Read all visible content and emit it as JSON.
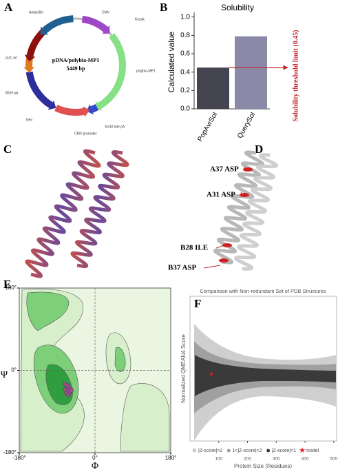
{
  "panel_letters": [
    "A",
    "B",
    "C",
    "D",
    "E",
    "F"
  ],
  "plasmid_map": {
    "name": "pDNA/polybia-MP1",
    "size": "5449 bp",
    "features": [
      "CMV",
      "Kozak",
      "polybia-MP1",
      "SV40 late pA",
      "CMV promoter",
      "Neo",
      "BGH pA",
      "pUC ori",
      "Ampicillin"
    ]
  },
  "structure_labels": [
    "A37 ASP",
    "A31 ASP",
    "B28 ILE",
    "B37 ASP"
  ],
  "chart_data": [
    {
      "type": "bar",
      "title": "Solubility",
      "y_label": "Calculated value",
      "categories": [
        "PopAvrSol",
        "QuerySol"
      ],
      "values": [
        0.45,
        0.79
      ],
      "colors": [
        "#454552",
        "#8a8aa8"
      ],
      "ylim": [
        0,
        1.05
      ],
      "yticks": [
        {
          "value": 0,
          "label": "0.0"
        },
        0.2,
        0.4,
        0.6,
        0.8,
        {
          "value": 1,
          "label": "1.0"
        }
      ],
      "threshold": 0.45,
      "annotation": "Solubility threshold limit (0.45)",
      "annotation_color": "#c0272d"
    },
    {
      "type": "scatter",
      "x_label": "Φ",
      "y_label": "Ψ",
      "xlim": [
        -180,
        180
      ],
      "ylim": [
        -180,
        180
      ],
      "xticks": [
        {
          "value": -180,
          "label": "-180°"
        },
        {
          "value": 0,
          "label": "0°"
        },
        {
          "value": 180,
          "label": "180°"
        }
      ],
      "yticks": [
        {
          "value": -180,
          "label": "-180°"
        },
        {
          "value": 0,
          "label": "0°"
        },
        {
          "value": 180,
          "label": "180°"
        }
      ],
      "x": [
        -72,
        -66,
        -62,
        -58,
        -70,
        -64,
        -60,
        -68,
        -56,
        -63
      ],
      "values": [
        -30,
        -33,
        -36,
        -40,
        -42,
        -45,
        -48,
        -50,
        -44,
        -54
      ],
      "color": "#9b4f8f"
    },
    {
      "type": "scatter",
      "title": "Comparison with Non-redundant Set of PDB Structures",
      "x_label": "Protein Size (Residues)",
      "y_label": "Normalized QMEAN4 Score",
      "xlim": [
        0,
        510
      ],
      "ylim": [
        -4,
        4
      ],
      "xticks": [
        100,
        200,
        300,
        400,
        500
      ],
      "series": [
        {
          "name": "|Z-score|>2",
          "color": "#c8c8c8"
        },
        {
          "name": "1<|Z-score|<2",
          "color": "#9a9a9a"
        },
        {
          "name": "|Z-score|<1",
          "color": "#3a3a3a"
        },
        {
          "name": "model",
          "color": "#e02020",
          "x": [
            75
          ],
          "values": [
            -0.3
          ]
        }
      ]
    }
  ]
}
